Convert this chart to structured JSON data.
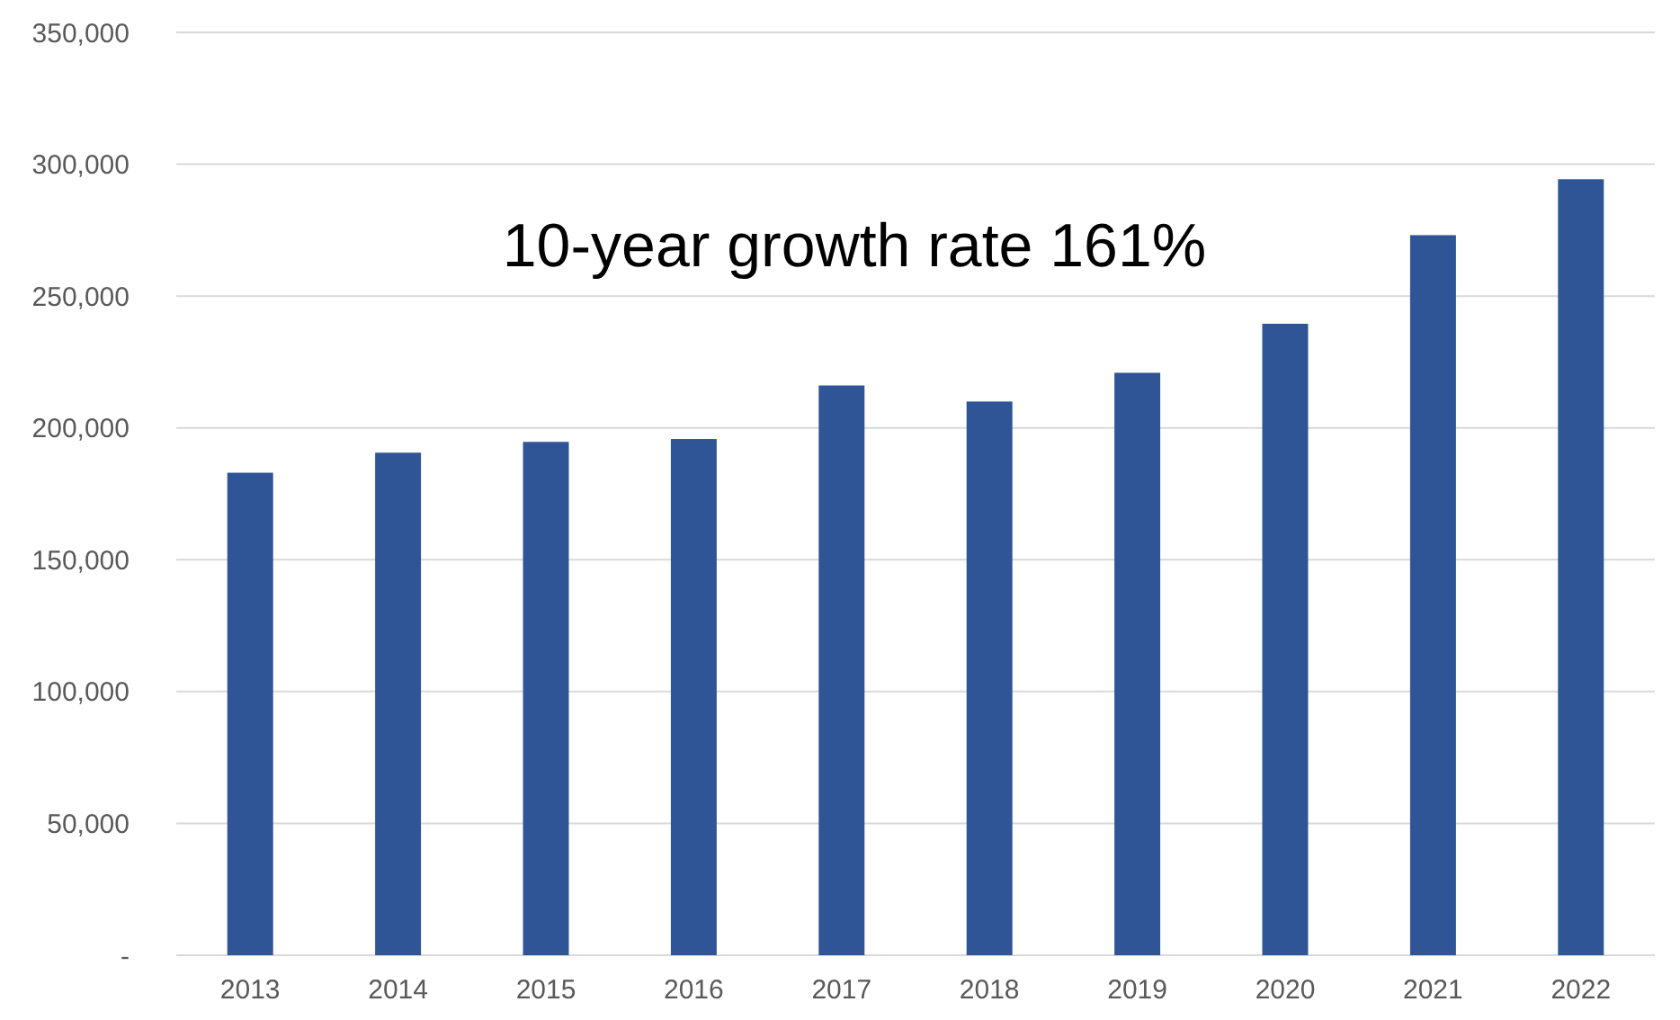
{
  "chart_data": {
    "type": "bar",
    "categories": [
      "2013",
      "2014",
      "2015",
      "2016",
      "2017",
      "2018",
      "2019",
      "2020",
      "2021",
      "2022"
    ],
    "values": [
      183000,
      190600,
      194700,
      195800,
      216100,
      210000,
      220900,
      239500,
      273100,
      294300
    ],
    "color": "#2f5597",
    "ylim": [
      0,
      350000
    ],
    "yticks": [
      {
        "value": 0,
        "label": "-"
      },
      {
        "value": 50000,
        "label": "50,000"
      },
      {
        "value": 100000,
        "label": "100,000"
      },
      {
        "value": 150000,
        "label": "150,000"
      },
      {
        "value": 200000,
        "label": "200,000"
      },
      {
        "value": 250000,
        "label": "250,000"
      },
      {
        "value": 300000,
        "label": "300,000"
      },
      {
        "value": 350000,
        "label": "350,000"
      }
    ],
    "grid": "y",
    "annotations": [
      "10-year growth rate 161%"
    ]
  }
}
